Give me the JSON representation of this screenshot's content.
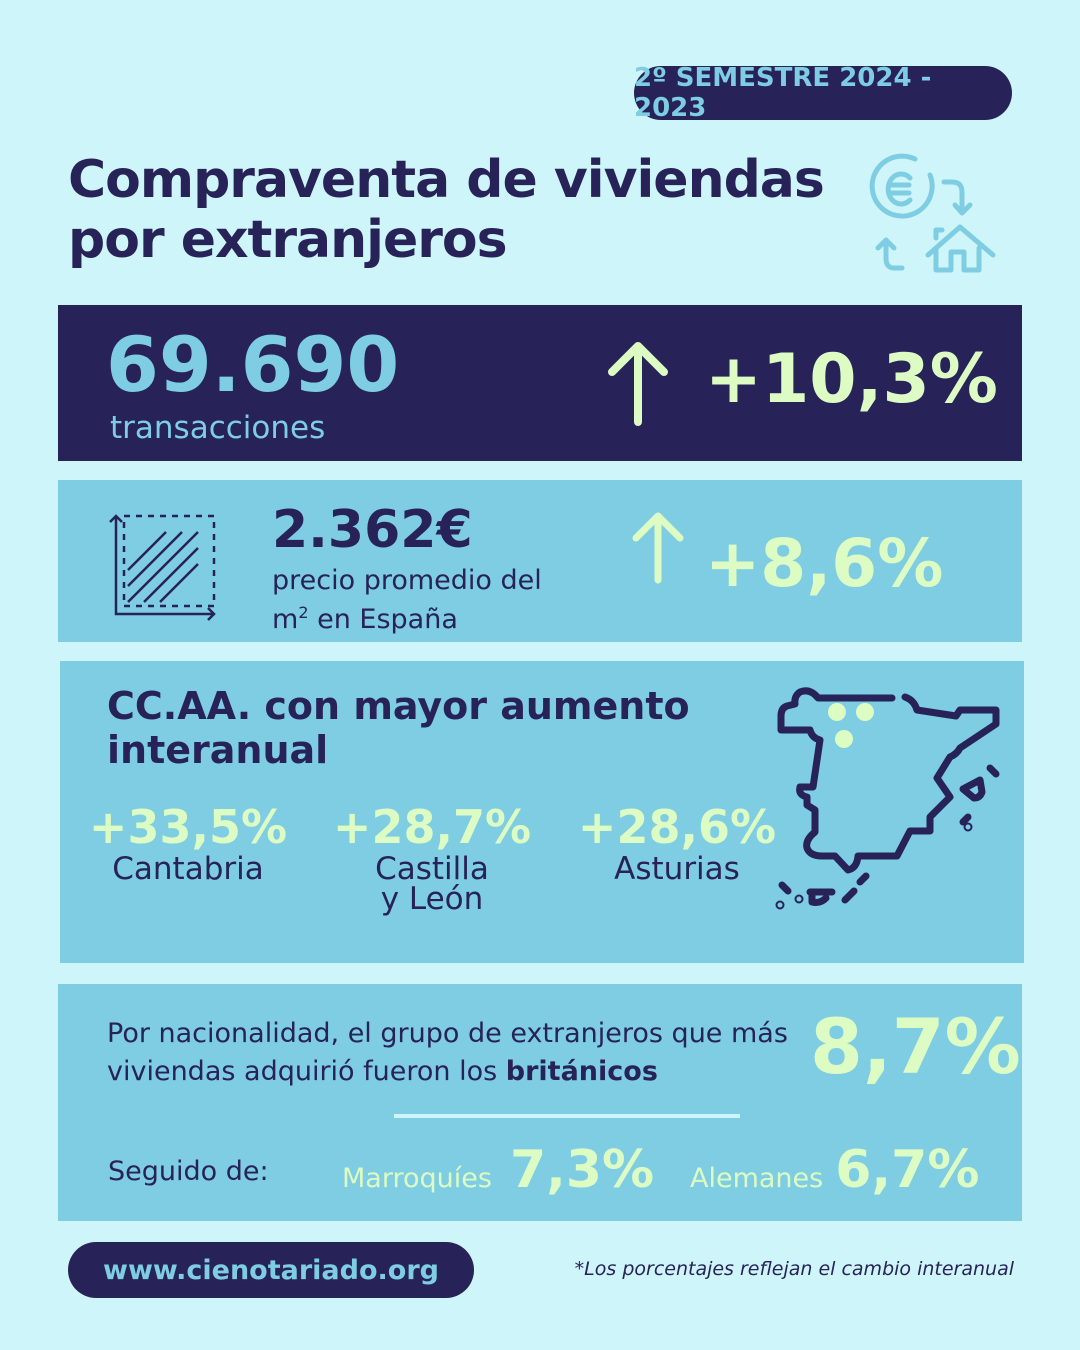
{
  "badge": "2º SEMESTRE 2024 - 2023",
  "title": {
    "line1": "Compraventa de viviendas",
    "line2": "por extranjeros"
  },
  "transactions": {
    "value": "69.690",
    "label": "transacciones",
    "change": "+10,3%"
  },
  "price": {
    "value": "2.362€",
    "label_line1": "precio promedio del",
    "label_line2_prefix": "m",
    "label_sup": "2",
    "label_line2_suffix": "en España",
    "change": "+8,6%"
  },
  "regions": {
    "heading_line1": "CC.AA. con mayor aumento",
    "heading_line2": "interanual",
    "items": [
      {
        "pct": "+33,5%",
        "name_line1": "Cantabria",
        "name_line2": ""
      },
      {
        "pct": "+28,7%",
        "name_line1": "Castilla",
        "name_line2": "y León"
      },
      {
        "pct": "+28,6%",
        "name_line1": "Asturias",
        "name_line2": ""
      }
    ]
  },
  "nationality": {
    "text_line1": "Por nacionalidad, el grupo de extranjeros que más",
    "text_line2_prefix": "viviendas adquirió fueron los ",
    "text_bold": "británicos",
    "pct": "8,7%",
    "followed_label": "Seguido de:",
    "others": [
      {
        "name": "Marroquíes",
        "pct": "7,3%"
      },
      {
        "name": "Alemanes",
        "pct": "6,7%"
      }
    ]
  },
  "footer": {
    "url": "www.cienotariado.org",
    "note": "*Los porcentajes reflejan el cambio interanual"
  },
  "colors": {
    "background": "#cdf5fa",
    "dark": "#272358",
    "mid": "#7ecde3",
    "accent": "#dcfcc4"
  }
}
